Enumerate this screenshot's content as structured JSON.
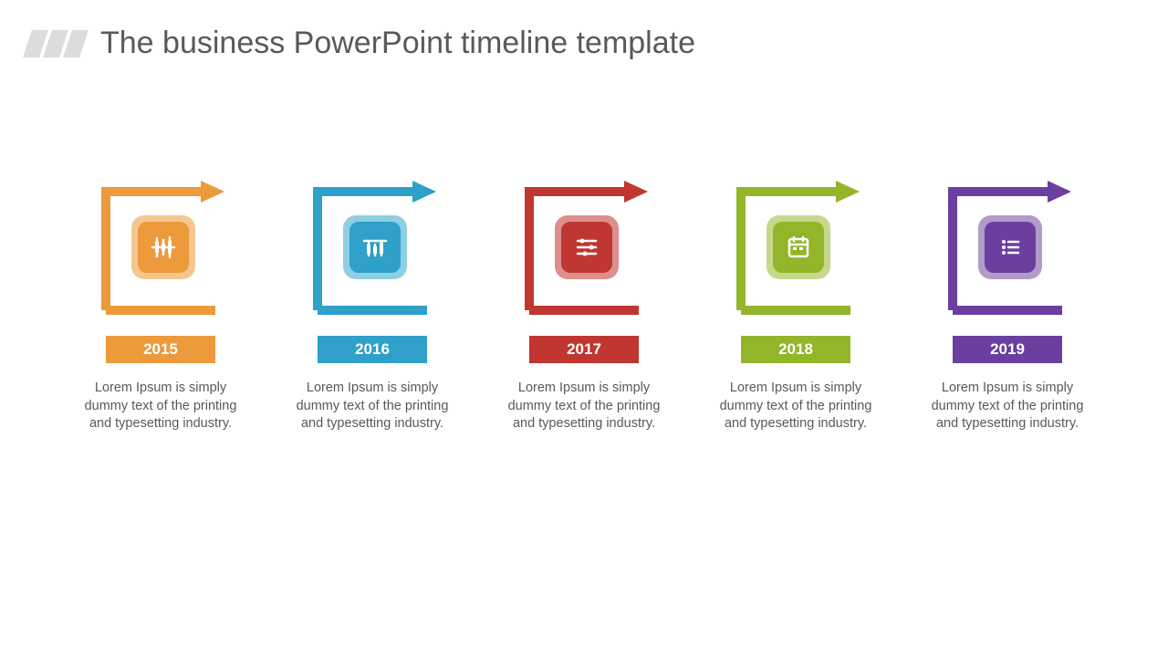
{
  "header": {
    "title": "The business PowerPoint timeline template",
    "bar_color": "#dcdcdc",
    "title_color": "#595959"
  },
  "timeline": {
    "background": "#ffffff",
    "items": [
      {
        "year": "2015",
        "color": "#ec9a3c",
        "tile_light": "#f5c78e",
        "icon": "candlestick",
        "desc": "Lorem Ipsum is simply dummy text of the printing and typesetting industry."
      },
      {
        "year": "2016",
        "color": "#2ea0c9",
        "tile_light": "#8fcfe3",
        "icon": "barchart",
        "desc": "Lorem Ipsum is simply dummy text of the printing and typesetting industry."
      },
      {
        "year": "2017",
        "color": "#c03631",
        "tile_light": "#dd8f8c",
        "icon": "sliders",
        "desc": "Lorem Ipsum is simply dummy text of the printing and typesetting industry."
      },
      {
        "year": "2018",
        "color": "#93b52a",
        "tile_light": "#c6d88b",
        "icon": "calendar",
        "desc": "Lorem Ipsum is simply dummy text of the printing and typesetting industry."
      },
      {
        "year": "2019",
        "color": "#6b3fa0",
        "tile_light": "#b09bc9",
        "icon": "list",
        "desc": "Lorem Ipsum is simply dummy text of the printing and typesetting industry."
      }
    ]
  },
  "style": {
    "title_fontsize": 34,
    "year_fontsize": 17,
    "desc_fontsize": 14.5,
    "desc_color": "#595959",
    "unit_width": 190,
    "bracket_size": 160,
    "tile_size": 70,
    "tile_radius": 14,
    "year_badge_width": 120,
    "year_badge_height": 30,
    "gap": 42
  }
}
